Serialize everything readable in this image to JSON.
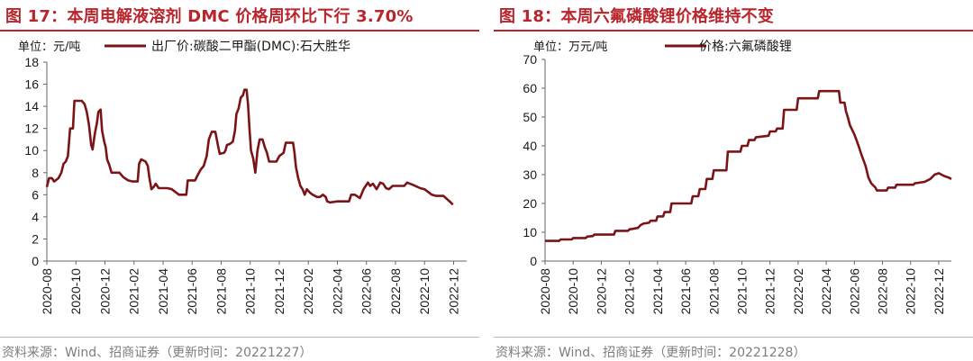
{
  "colors": {
    "title": "#b8252c",
    "series": "#7b1416",
    "source": "#7d7d7d",
    "axis": "#666666"
  },
  "panels": [
    {
      "title": "图 17：本周电解液溶剂 DMC 价格周环比下行 3.70%",
      "source": "资料来源：Wind、招商证券（更新时间：20221227）",
      "chart_data": {
        "type": "line",
        "unit": "单位：元/吨",
        "legend": "出厂价:碳酸二甲酯(DMC):石大胜华",
        "legend_position": "top",
        "grid": false,
        "ylim": [
          0,
          18
        ],
        "yticks": [
          0,
          2,
          4,
          6,
          8,
          10,
          12,
          14,
          16,
          18
        ],
        "xticks": [
          "2020-08",
          "2020-10",
          "2020-12",
          "2021-02",
          "2021-04",
          "2021-06",
          "2021-08",
          "2021-10",
          "2021-12",
          "2022-02",
          "2022-04",
          "2022-06",
          "2022-08",
          "2022-10",
          "2022-12"
        ],
        "xlim": [
          0,
          28.9
        ],
        "series": [
          {
            "name": "出厂价:碳酸二甲酯(DMC):石大胜华",
            "points": [
              [
                0.0,
                6.7
              ],
              [
                0.15,
                7.5
              ],
              [
                0.35,
                7.5
              ],
              [
                0.5,
                7.2
              ],
              [
                0.8,
                7.5
              ],
              [
                1.0,
                8.0
              ],
              [
                1.15,
                8.8
              ],
              [
                1.3,
                9.0
              ],
              [
                1.45,
                9.5
              ],
              [
                1.6,
                12.0
              ],
              [
                1.8,
                12.0
              ],
              [
                1.9,
                14.5
              ],
              [
                2.4,
                14.5
              ],
              [
                2.6,
                14.2
              ],
              [
                2.75,
                13.5
              ],
              [
                2.9,
                12.3
              ],
              [
                3.05,
                10.5
              ],
              [
                3.15,
                10.1
              ],
              [
                3.3,
                11.5
              ],
              [
                3.45,
                12.5
              ],
              [
                3.55,
                13.5
              ],
              [
                3.7,
                13.7
              ],
              [
                3.8,
                11.8
              ],
              [
                3.95,
                10.8
              ],
              [
                4.05,
                10.3
              ],
              [
                4.15,
                9.2
              ],
              [
                4.3,
                8.7
              ],
              [
                4.45,
                8.0
              ],
              [
                5.0,
                8.0
              ],
              [
                5.25,
                7.6
              ],
              [
                5.6,
                7.3
              ],
              [
                5.9,
                7.2
              ],
              [
                6.25,
                7.2
              ],
              [
                6.35,
                8.8
              ],
              [
                6.5,
                9.2
              ],
              [
                6.8,
                9.0
              ],
              [
                6.95,
                8.6
              ],
              [
                7.05,
                7.6
              ],
              [
                7.2,
                6.5
              ],
              [
                7.35,
                6.7
              ],
              [
                7.5,
                7.0
              ],
              [
                7.7,
                6.6
              ],
              [
                8.3,
                6.6
              ],
              [
                8.6,
                6.5
              ],
              [
                8.9,
                6.2
              ],
              [
                9.1,
                6.0
              ],
              [
                9.6,
                6.0
              ],
              [
                9.7,
                7.3
              ],
              [
                10.2,
                7.3
              ],
              [
                10.35,
                7.7
              ],
              [
                10.6,
                8.3
              ],
              [
                10.8,
                8.6
              ],
              [
                11.0,
                9.5
              ],
              [
                11.15,
                11.0
              ],
              [
                11.35,
                11.7
              ],
              [
                11.6,
                11.7
              ],
              [
                11.8,
                10.3
              ],
              [
                11.9,
                9.7
              ],
              [
                12.2,
                9.8
              ],
              [
                12.3,
                10.0
              ],
              [
                12.4,
                10.5
              ],
              [
                12.6,
                10.6
              ],
              [
                12.8,
                10.8
              ],
              [
                12.95,
                11.8
              ],
              [
                13.05,
                13.3
              ],
              [
                13.2,
                13.8
              ],
              [
                13.35,
                14.8
              ],
              [
                13.5,
                15.0
              ],
              [
                13.6,
                15.5
              ],
              [
                13.75,
                15.5
              ],
              [
                13.85,
                14.2
              ],
              [
                13.95,
                12.0
              ],
              [
                14.05,
                10.0
              ],
              [
                14.2,
                9.3
              ],
              [
                14.35,
                8.0
              ],
              [
                14.5,
                10.0
              ],
              [
                14.65,
                11.0
              ],
              [
                14.85,
                11.0
              ],
              [
                15.0,
                10.3
              ],
              [
                15.15,
                9.8
              ],
              [
                15.3,
                9.0
              ],
              [
                15.8,
                9.0
              ],
              [
                16.0,
                9.5
              ],
              [
                16.3,
                9.8
              ],
              [
                16.45,
                10.7
              ],
              [
                16.95,
                10.7
              ],
              [
                17.05,
                9.8
              ],
              [
                17.15,
                8.5
              ],
              [
                17.3,
                7.5
              ],
              [
                17.45,
                6.8
              ],
              [
                17.6,
                6.5
              ],
              [
                17.75,
                6.0
              ],
              [
                17.9,
                6.5
              ],
              [
                18.1,
                6.2
              ],
              [
                18.3,
                6.0
              ],
              [
                18.6,
                5.8
              ],
              [
                18.8,
                5.8
              ],
              [
                19.0,
                6.0
              ],
              [
                19.2,
                5.8
              ],
              [
                19.3,
                5.4
              ],
              [
                19.5,
                5.3
              ],
              [
                20.0,
                5.4
              ],
              [
                20.3,
                5.4
              ],
              [
                20.55,
                5.4
              ],
              [
                20.8,
                5.4
              ],
              [
                20.95,
                6.0
              ],
              [
                21.2,
                6.0
              ],
              [
                21.55,
                5.7
              ],
              [
                21.8,
                6.5
              ],
              [
                21.95,
                6.8
              ],
              [
                22.1,
                7.1
              ],
              [
                22.25,
                6.8
              ],
              [
                22.45,
                7.0
              ],
              [
                22.7,
                6.5
              ],
              [
                22.95,
                7.1
              ],
              [
                23.15,
                7.0
              ],
              [
                23.35,
                6.6
              ],
              [
                23.55,
                6.5
              ],
              [
                23.8,
                6.8
              ],
              [
                24.6,
                6.8
              ],
              [
                24.8,
                7.1
              ],
              [
                25.2,
                6.9
              ],
              [
                25.7,
                6.6
              ],
              [
                26.0,
                6.5
              ],
              [
                26.5,
                6.0
              ],
              [
                26.8,
                5.9
              ],
              [
                27.3,
                5.9
              ],
              [
                27.55,
                5.6
              ],
              [
                27.8,
                5.3
              ],
              [
                27.95,
                5.1
              ]
            ]
          }
        ]
      }
    },
    {
      "title": "图 18：本周六氟磷酸锂价格维持不变",
      "source": "资料来源：Wind、招商证券（更新时间：20221228）",
      "chart_data": {
        "type": "line",
        "unit": "单位：万元/吨",
        "legend": "价格:六氟磷酸锂",
        "legend_position": "top",
        "grid": false,
        "ylim": [
          0,
          70
        ],
        "yticks": [
          0,
          10,
          20,
          30,
          40,
          50,
          60,
          70
        ],
        "xticks": [
          "2020-08",
          "2020-10",
          "2020-12",
          "2021-02",
          "2021-04",
          "2021-06",
          "2021-08",
          "2021-10",
          "2021-12",
          "2022-02",
          "2022-04",
          "2022-06",
          "2022-08",
          "2022-10",
          "2022-12"
        ],
        "xlim": [
          0,
          28.9
        ],
        "series": [
          {
            "name": "价格:六氟磷酸锂",
            "points": [
              [
                0.0,
                7.0
              ],
              [
                1.0,
                7.0
              ],
              [
                1.1,
                7.5
              ],
              [
                1.9,
                7.5
              ],
              [
                2.0,
                8.0
              ],
              [
                2.9,
                8.0
              ],
              [
                3.0,
                8.5
              ],
              [
                3.4,
                8.7
              ],
              [
                3.5,
                9.2
              ],
              [
                4.9,
                9.2
              ],
              [
                5.0,
                10.5
              ],
              [
                5.9,
                10.5
              ],
              [
                6.0,
                11.0
              ],
              [
                6.6,
                11.5
              ],
              [
                6.8,
                12.5
              ],
              [
                7.0,
                13.0
              ],
              [
                7.4,
                13.3
              ],
              [
                7.5,
                14.0
              ],
              [
                7.9,
                14.0
              ],
              [
                8.0,
                15.5
              ],
              [
                8.4,
                15.5
              ],
              [
                8.5,
                17.0
              ],
              [
                8.9,
                17.0
              ],
              [
                9.0,
                20.0
              ],
              [
                10.4,
                20.0
              ],
              [
                10.5,
                22.5
              ],
              [
                10.9,
                22.5
              ],
              [
                11.0,
                25.0
              ],
              [
                11.4,
                25.0
              ],
              [
                11.5,
                28.5
              ],
              [
                11.9,
                28.5
              ],
              [
                12.0,
                31.5
              ],
              [
                12.9,
                31.5
              ],
              [
                13.0,
                38.0
              ],
              [
                13.9,
                38.0
              ],
              [
                14.0,
                40.0
              ],
              [
                14.4,
                40.0
              ],
              [
                14.5,
                42.0
              ],
              [
                14.9,
                42.0
              ],
              [
                15.0,
                43.0
              ],
              [
                15.9,
                43.5
              ],
              [
                16.0,
                45.0
              ],
              [
                16.4,
                45.0
              ],
              [
                16.5,
                46.0
              ],
              [
                16.9,
                46.0
              ],
              [
                17.0,
                52.5
              ],
              [
                17.9,
                52.5
              ],
              [
                18.0,
                56.5
              ],
              [
                19.4,
                56.5
              ],
              [
                19.5,
                59.0
              ],
              [
                20.9,
                59.0
              ],
              [
                21.0,
                55.0
              ],
              [
                21.3,
                55.0
              ],
              [
                21.4,
                52.0
              ],
              [
                21.5,
                50.5
              ],
              [
                21.7,
                47.0
              ],
              [
                22.0,
                44.0
              ],
              [
                22.3,
                40.0
              ],
              [
                22.5,
                37.0
              ],
              [
                22.8,
                33.0
              ],
              [
                23.0,
                29.0
              ],
              [
                23.2,
                27.0
              ],
              [
                23.5,
                25.5
              ],
              [
                23.6,
                24.5
              ],
              [
                24.0,
                24.5
              ],
              [
                24.3,
                24.5
              ],
              [
                24.4,
                25.5
              ],
              [
                24.9,
                25.5
              ],
              [
                25.0,
                26.5
              ],
              [
                26.2,
                26.5
              ],
              [
                26.3,
                27.0
              ],
              [
                27.0,
                27.5
              ],
              [
                27.4,
                28.5
              ],
              [
                27.7,
                30.0
              ],
              [
                28.0,
                30.5
              ],
              [
                28.2,
                30.0
              ],
              [
                28.4,
                29.5
              ],
              [
                28.7,
                29.0
              ],
              [
                28.9,
                28.5
              ]
            ]
          }
        ]
      }
    }
  ]
}
